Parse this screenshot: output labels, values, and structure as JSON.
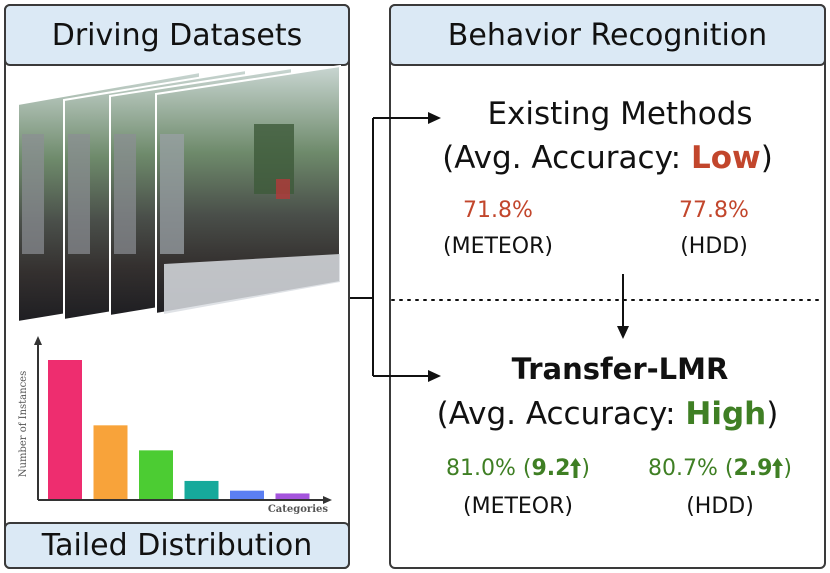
{
  "left_panel": {
    "title": "Driving Datasets",
    "footer": "Tailed Distribution",
    "histogram": {
      "ylabel": "Number of Instances",
      "xlabel": "Categories",
      "bar_colors": [
        "#ee2d6f",
        "#f8a33a",
        "#4ccc33",
        "#16a99b",
        "#5b7ff2",
        "#a454dc"
      ],
      "bar_values": [
        1.0,
        0.53,
        0.35,
        0.13,
        0.06,
        0.04
      ]
    }
  },
  "right_panel": {
    "title": "Behavior Recognition",
    "existing": {
      "heading": "Existing Methods",
      "sub_prefix": "(Avg. Accuracy: ",
      "sub_value": "Low",
      "sub_suffix": ")",
      "meteor_value": "71.8%",
      "meteor_label": "(METEOR)",
      "hdd_value": "77.8%",
      "hdd_label": "(HDD)"
    },
    "transfer": {
      "heading": "Transfer-LMR",
      "sub_prefix": "(Avg. Accuracy: ",
      "sub_value": "High",
      "sub_suffix": ")",
      "meteor_value": "81.0%",
      "meteor_gain": "9.2",
      "meteor_label": "(METEOR)",
      "hdd_value": "80.7%",
      "hdd_gain": "2.9",
      "hdd_label": "(HDD)"
    }
  },
  "colors": {
    "low": "#c2462c",
    "high": "#3f7f24",
    "header_bg": "#dbe9f5"
  }
}
